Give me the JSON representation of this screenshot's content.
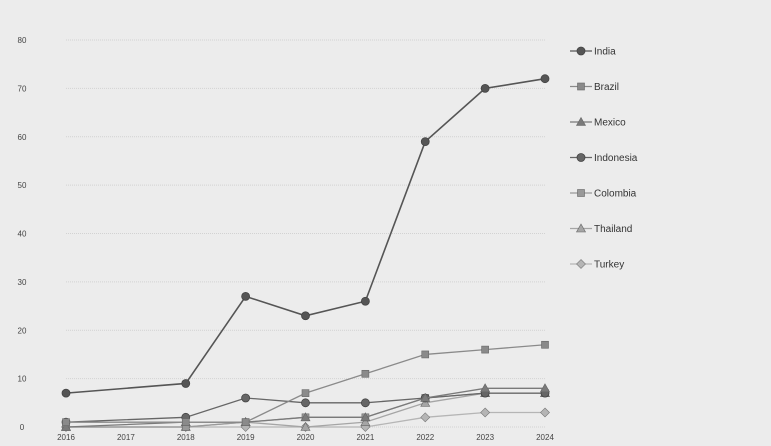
{
  "chart_data": {
    "type": "line",
    "x": [
      "2016",
      "2017",
      "2018",
      "2019",
      "2020",
      "2021",
      "2022",
      "2023",
      "2024"
    ],
    "ylim": [
      0,
      80
    ],
    "yticks": [
      0,
      10,
      20,
      30,
      40,
      50,
      60,
      70,
      80
    ],
    "grid": true,
    "legend_position": "right",
    "series": [
      {
        "name": "India",
        "marker": "circle",
        "color": "#555555",
        "values": [
          7,
          null,
          9,
          27,
          23,
          26,
          59,
          70,
          72
        ]
      },
      {
        "name": "Brazil",
        "marker": "square",
        "color": "#8a8a8a",
        "values": [
          1,
          null,
          1,
          1,
          7,
          11,
          15,
          16,
          17
        ]
      },
      {
        "name": "Mexico",
        "marker": "triangle",
        "color": "#7a7a7a",
        "values": [
          0,
          null,
          1,
          1,
          2,
          2,
          6,
          8,
          8
        ]
      },
      {
        "name": "Indonesia",
        "marker": "circle",
        "color": "#666666",
        "values": [
          1,
          null,
          2,
          6,
          5,
          5,
          6,
          7,
          7
        ]
      },
      {
        "name": "Colombia",
        "marker": "square",
        "color": "#999999",
        "values": [
          0,
          null,
          0,
          1,
          2,
          2,
          6,
          7,
          7
        ]
      },
      {
        "name": "Thailand",
        "marker": "triangle",
        "color": "#a5a5a5",
        "values": [
          0,
          null,
          0,
          1,
          0,
          1,
          5,
          7,
          7
        ]
      },
      {
        "name": "Turkey",
        "marker": "diamond",
        "color": "#b5b5b5",
        "values": [
          0,
          null,
          0,
          0,
          0,
          0,
          2,
          3,
          3
        ]
      }
    ]
  }
}
